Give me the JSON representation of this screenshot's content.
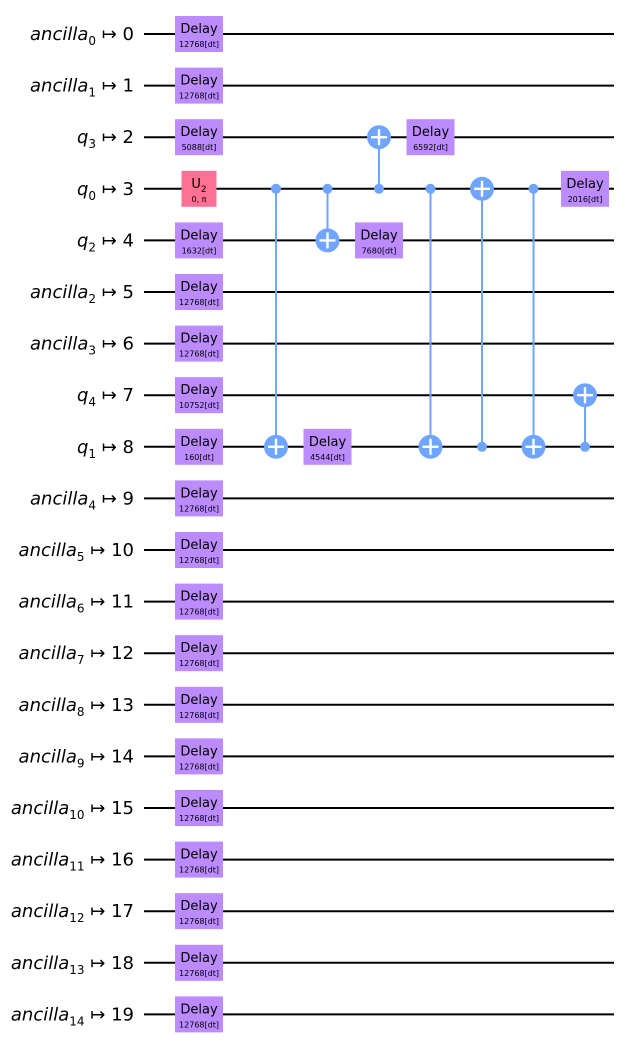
{
  "colors": {
    "wire": "#000000",
    "delay_gate": "#bb8bff",
    "u_gate": "#ff7094",
    "cx": "#6fa4ff",
    "background": "#ffffff"
  },
  "wires": [
    {
      "name": "ancilla",
      "sub": "0",
      "index": "0"
    },
    {
      "name": "ancilla",
      "sub": "1",
      "index": "1"
    },
    {
      "name": "q",
      "sub": "3",
      "index": "2"
    },
    {
      "name": "q",
      "sub": "0",
      "index": "3"
    },
    {
      "name": "q",
      "sub": "2",
      "index": "4"
    },
    {
      "name": "ancilla",
      "sub": "2",
      "index": "5"
    },
    {
      "name": "ancilla",
      "sub": "3",
      "index": "6"
    },
    {
      "name": "q",
      "sub": "4",
      "index": "7"
    },
    {
      "name": "q",
      "sub": "1",
      "index": "8"
    },
    {
      "name": "ancilla",
      "sub": "4",
      "index": "9"
    },
    {
      "name": "ancilla",
      "sub": "5",
      "index": "10"
    },
    {
      "name": "ancilla",
      "sub": "6",
      "index": "11"
    },
    {
      "name": "ancilla",
      "sub": "7",
      "index": "12"
    },
    {
      "name": "ancilla",
      "sub": "8",
      "index": "13"
    },
    {
      "name": "ancilla",
      "sub": "9",
      "index": "14"
    },
    {
      "name": "ancilla",
      "sub": "10",
      "index": "15"
    },
    {
      "name": "ancilla",
      "sub": "11",
      "index": "16"
    },
    {
      "name": "ancilla",
      "sub": "12",
      "index": "17"
    },
    {
      "name": "ancilla",
      "sub": "13",
      "index": "18"
    },
    {
      "name": "ancilla",
      "sub": "14",
      "index": "19"
    }
  ],
  "mapsto": "↦",
  "gates": [
    {
      "type": "delay",
      "label": "Delay",
      "param": "12768[dt]",
      "wire": 0,
      "column": 0
    },
    {
      "type": "delay",
      "label": "Delay",
      "param": "12768[dt]",
      "wire": 1,
      "column": 0
    },
    {
      "type": "delay",
      "label": "Delay",
      "param": "5088[dt]",
      "wire": 2,
      "column": 0
    },
    {
      "type": "u",
      "label": "U",
      "label_sub": "2",
      "param": "0, π",
      "wire": 3,
      "column": 0
    },
    {
      "type": "delay",
      "label": "Delay",
      "param": "1632[dt]",
      "wire": 4,
      "column": 0
    },
    {
      "type": "delay",
      "label": "Delay",
      "param": "12768[dt]",
      "wire": 5,
      "column": 0
    },
    {
      "type": "delay",
      "label": "Delay",
      "param": "12768[dt]",
      "wire": 6,
      "column": 0
    },
    {
      "type": "delay",
      "label": "Delay",
      "param": "10752[dt]",
      "wire": 7,
      "column": 0
    },
    {
      "type": "delay",
      "label": "Delay",
      "param": "160[dt]",
      "wire": 8,
      "column": 0
    },
    {
      "type": "delay",
      "label": "Delay",
      "param": "12768[dt]",
      "wire": 9,
      "column": 0
    },
    {
      "type": "delay",
      "label": "Delay",
      "param": "12768[dt]",
      "wire": 10,
      "column": 0
    },
    {
      "type": "delay",
      "label": "Delay",
      "param": "12768[dt]",
      "wire": 11,
      "column": 0
    },
    {
      "type": "delay",
      "label": "Delay",
      "param": "12768[dt]",
      "wire": 12,
      "column": 0
    },
    {
      "type": "delay",
      "label": "Delay",
      "param": "12768[dt]",
      "wire": 13,
      "column": 0
    },
    {
      "type": "delay",
      "label": "Delay",
      "param": "12768[dt]",
      "wire": 14,
      "column": 0
    },
    {
      "type": "delay",
      "label": "Delay",
      "param": "12768[dt]",
      "wire": 15,
      "column": 0
    },
    {
      "type": "delay",
      "label": "Delay",
      "param": "12768[dt]",
      "wire": 16,
      "column": 0
    },
    {
      "type": "delay",
      "label": "Delay",
      "param": "12768[dt]",
      "wire": 17,
      "column": 0
    },
    {
      "type": "delay",
      "label": "Delay",
      "param": "12768[dt]",
      "wire": 18,
      "column": 0
    },
    {
      "type": "delay",
      "label": "Delay",
      "param": "12768[dt]",
      "wire": 19,
      "column": 0
    },
    {
      "type": "cx",
      "control": 3,
      "target": 8,
      "column": 1
    },
    {
      "type": "delay",
      "label": "Delay",
      "param": "4544[dt]",
      "wire": 8,
      "column": 2
    },
    {
      "type": "cx",
      "control": 3,
      "target": 4,
      "column": 2
    },
    {
      "type": "cx",
      "control": 3,
      "target": 2,
      "column": 3
    },
    {
      "type": "delay",
      "label": "Delay",
      "param": "7680[dt]",
      "wire": 4,
      "column": 3
    },
    {
      "type": "delay",
      "label": "Delay",
      "param": "6592[dt]",
      "wire": 2,
      "column": 4
    },
    {
      "type": "cx",
      "control": 3,
      "target": 8,
      "column": 4
    },
    {
      "type": "cx",
      "control": 8,
      "target": 3,
      "column": 5
    },
    {
      "type": "cx",
      "control": 3,
      "target": 8,
      "column": 6
    },
    {
      "type": "delay",
      "label": "Delay",
      "param": "2016[dt]",
      "wire": 3,
      "column": 7
    },
    {
      "type": "cx",
      "control": 8,
      "target": 7,
      "column": 7
    }
  ]
}
